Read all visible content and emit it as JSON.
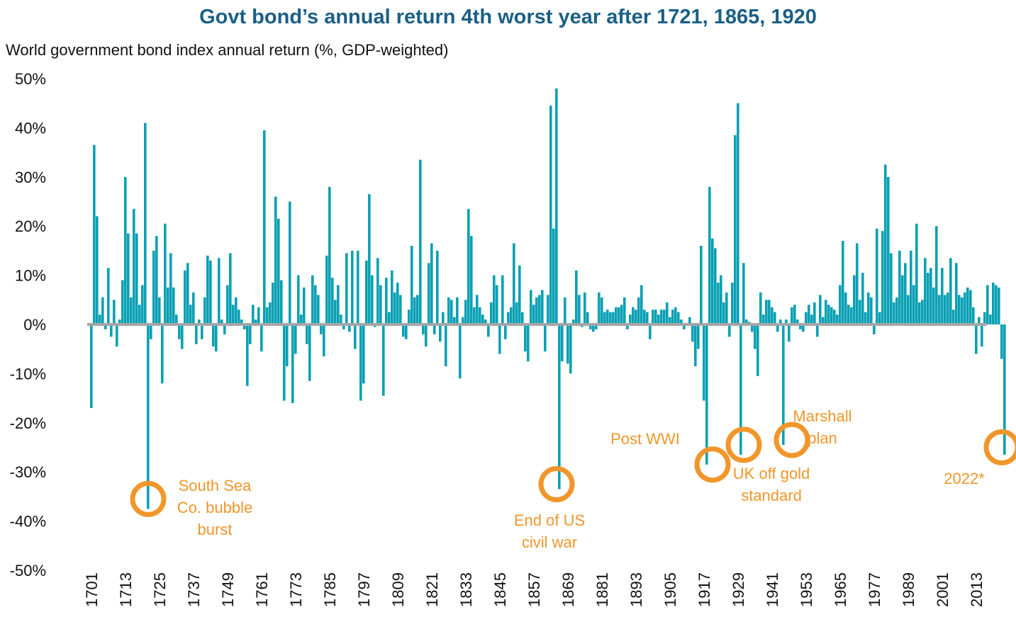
{
  "chart_data": {
    "type": "bar",
    "title": "Govt bond’s annual return 4th worst year after 1721, 1865, 1920",
    "subtitle": "World government bond index annual return (%, GDP-weighted)",
    "ylim": [
      -50,
      50
    ],
    "yticks": [
      50,
      40,
      30,
      20,
      10,
      0,
      -10,
      -20,
      -30,
      -40,
      -50
    ],
    "ytick_labels": [
      "50%",
      "40%",
      "30%",
      "20%",
      "10%",
      "0%",
      "-10%",
      "-20%",
      "-30%",
      "-40%",
      "-50%"
    ],
    "xtick_labels": [
      "1701",
      "1713",
      "1725",
      "1737",
      "1749",
      "1761",
      "1773",
      "1785",
      "1797",
      "1809",
      "1821",
      "1833",
      "1845",
      "1857",
      "1869",
      "1881",
      "1893",
      "1905",
      "1917",
      "1929",
      "1941",
      "1953",
      "1965",
      "1977",
      "1989",
      "2001",
      "2013"
    ],
    "x_start": 1701,
    "x_end": 2022,
    "bar_color": "#0aa0b4",
    "zero_line_color": "#a6a6a6",
    "annotation_color": "#f0962a",
    "grid": false,
    "legend": false,
    "annotations": [
      {
        "year": 1721,
        "value": -35.5,
        "lines": [
          "South Sea",
          "Co. bubble",
          "burst"
        ]
      },
      {
        "year": 1865,
        "value": -32.5,
        "lines": [
          "End of US",
          "civil war"
        ]
      },
      {
        "year": 1920,
        "value": -28.5,
        "lines": [
          "Post WWI"
        ]
      },
      {
        "year": 1931,
        "value": -24.5,
        "lines": [
          "UK off gold",
          "standard"
        ]
      },
      {
        "year": 1948,
        "value": -23.5,
        "lines": [
          "Marshall",
          "plan"
        ]
      },
      {
        "year": 2022,
        "value": -25,
        "lines": [
          "2022*"
        ]
      }
    ],
    "values": [
      -17,
      36.5,
      22,
      2,
      5.5,
      -1,
      11.5,
      -2.5,
      5,
      -4.5,
      1,
      9,
      30,
      18.5,
      5.5,
      23.5,
      18.5,
      4,
      8,
      41,
      -37.5,
      -3,
      15,
      18,
      5.5,
      -12,
      20.5,
      7.5,
      14.5,
      7.5,
      2,
      -3,
      -5,
      11,
      12.5,
      4,
      6.5,
      -4,
      1,
      -3,
      5.5,
      14,
      13,
      -4.5,
      -5.5,
      13.5,
      1,
      -2,
      8,
      14.5,
      4,
      5.5,
      3,
      1,
      -1,
      -12.5,
      -4,
      4,
      1,
      3.5,
      -5.5,
      39.5,
      3.5,
      4.5,
      8.5,
      26,
      21.5,
      9,
      -15.5,
      -8.5,
      25,
      -16,
      -6,
      10,
      2,
      7.5,
      -4,
      -11.5,
      10,
      8,
      6,
      -2,
      -6.5,
      14,
      28,
      9.5,
      5,
      8,
      2,
      -1,
      14.5,
      -1.5,
      15,
      -5,
      15,
      -15.5,
      -12,
      13,
      26.5,
      10,
      -0.5,
      13.5,
      8,
      -14.5,
      9.5,
      2.5,
      11,
      6.5,
      8.5,
      6,
      -2.5,
      -3,
      3,
      16,
      5.5,
      6,
      33.5,
      -2,
      -4.5,
      12.5,
      16.5,
      -2,
      15,
      -3.5,
      2.5,
      -8.5,
      5.5,
      5,
      1.5,
      5.5,
      -11,
      1.5,
      5,
      23.5,
      18,
      3.5,
      6,
      3.5,
      2,
      1,
      -2.5,
      4.5,
      10,
      8,
      -6,
      10,
      -3,
      2.5,
      3.5,
      16.5,
      4.5,
      12,
      2.5,
      -5.5,
      -7.5,
      7,
      4,
      5.5,
      6,
      7,
      -5.5,
      6,
      44.5,
      19.5,
      48,
      -33.5,
      -7.5,
      5.5,
      -8,
      -10,
      1,
      11,
      6,
      -0.5,
      6.5,
      2.5,
      -1,
      -1.5,
      -1,
      6.5,
      5.5,
      2.5,
      3,
      2.5,
      2.5,
      3.5,
      3.5,
      4,
      5.5,
      -1,
      2,
      3.5,
      3,
      5.5,
      8,
      3,
      2.5,
      -3,
      3,
      3,
      2,
      3,
      3,
      4.5,
      1.5,
      3,
      3.5,
      2.5,
      1,
      -1,
      0,
      1.5,
      -3.5,
      -8.5,
      -5,
      16,
      -15.5,
      -28.5,
      28,
      17.5,
      15.5,
      8.5,
      10,
      4.5,
      6.5,
      -2.5,
      8.5,
      38.5,
      45,
      -26.5,
      12.5,
      1,
      0.5,
      -1.5,
      -5,
      -10.5,
      6.5,
      2,
      5,
      5,
      3.5,
      2.5,
      -1.5,
      1,
      -24.5,
      1,
      -3.5,
      3.5,
      4,
      1,
      -1,
      -1.5,
      2.5,
      4,
      2,
      4.5,
      -2.5,
      6,
      1.5,
      5,
      4,
      3.5,
      3,
      2,
      8,
      17,
      6.5,
      4,
      3.5,
      10,
      16.5,
      5,
      10.5,
      2.5,
      6.5,
      5.5,
      -2,
      19.5,
      2.5,
      19,
      32.5,
      30,
      14.5,
      4.5,
      5.5,
      15,
      10,
      12.5,
      6,
      15,
      8,
      20.5,
      4.5,
      5,
      13.5,
      10.5,
      11.5,
      7.5,
      20,
      6,
      11.5,
      6,
      6.5,
      13.5,
      3,
      12.5,
      6,
      5.5,
      6.5,
      7.5,
      7,
      3.5,
      -6,
      1.5,
      -4.5,
      2.5,
      8,
      2,
      8.5,
      8,
      7.5,
      -7,
      -26.5
    ]
  }
}
